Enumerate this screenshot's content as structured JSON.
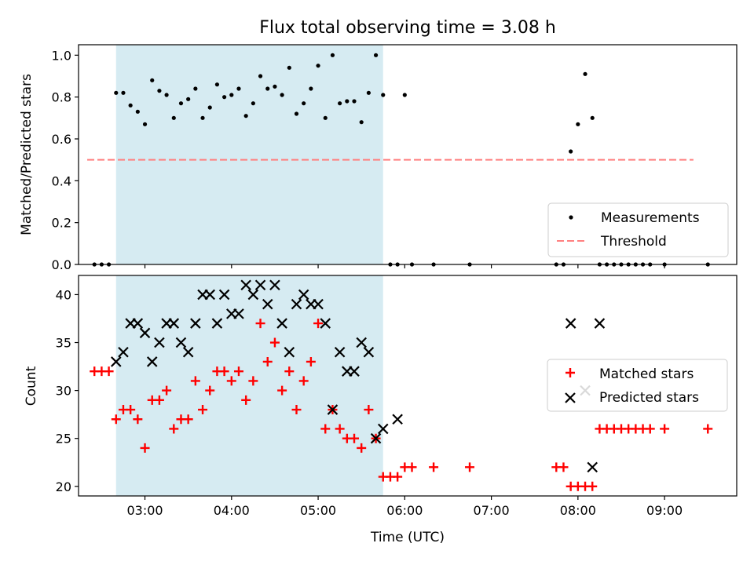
{
  "chart_data": [
    {
      "type": "scatter",
      "title": "Flux total observing time = 3.08 h",
      "ylabel": "Matched/Predicted stars",
      "xlabel": "",
      "ylim": [
        0,
        1.05
      ],
      "yticks": [
        "0.0",
        "0.2",
        "0.4",
        "0.6",
        "0.8",
        "1.0"
      ],
      "ytick_values": [
        0,
        0.2,
        0.4,
        0.6,
        0.8,
        1.0
      ],
      "shaded_span": [
        "02:40",
        "05:45"
      ],
      "legend_position": "lower-right",
      "legend": [
        "Measurements",
        "Threshold"
      ],
      "threshold": {
        "name": "Threshold",
        "y": 0.5,
        "x_start": "02:20",
        "x_end": "09:20",
        "color": "#ff8080"
      },
      "series": [
        {
          "name": "Measurements",
          "color": "#000000",
          "x": [
            "02:25",
            "02:30",
            "02:35",
            "02:40",
            "02:45",
            "02:50",
            "02:55",
            "03:00",
            "03:05",
            "03:10",
            "03:15",
            "03:20",
            "03:25",
            "03:30",
            "03:35",
            "03:40",
            "03:45",
            "03:50",
            "03:55",
            "04:00",
            "04:05",
            "04:10",
            "04:15",
            "04:20",
            "04:25",
            "04:30",
            "04:35",
            "04:40",
            "04:45",
            "04:50",
            "04:55",
            "05:00",
            "05:05",
            "05:10",
            "05:15",
            "05:20",
            "05:25",
            "05:30",
            "05:35",
            "05:40",
            "05:45",
            "05:50",
            "05:55",
            "06:00",
            "06:05",
            "06:20",
            "06:45",
            "07:45",
            "07:50",
            "07:55",
            "08:00",
            "08:05",
            "08:10",
            "08:15",
            "08:20",
            "08:25",
            "08:30",
            "08:35",
            "08:40",
            "08:45",
            "08:50",
            "09:00",
            "09:30"
          ],
          "y": [
            0,
            0,
            0,
            0.82,
            0.82,
            0.76,
            0.73,
            0.67,
            0.88,
            0.83,
            0.81,
            0.7,
            0.77,
            0.79,
            0.84,
            0.7,
            0.75,
            0.86,
            0.8,
            0.81,
            0.84,
            0.71,
            0.77,
            0.9,
            0.84,
            0.85,
            0.81,
            0.94,
            0.72,
            0.77,
            0.84,
            0.95,
            0.7,
            1.0,
            0.77,
            0.78,
            0.78,
            0.68,
            0.82,
            1.0,
            0.81,
            0,
            0,
            0.81,
            0,
            0,
            0,
            0,
            0,
            0.54,
            0.67,
            0.91,
            0.7,
            0,
            0,
            0,
            0,
            0,
            0,
            0,
            0,
            0,
            0
          ]
        }
      ]
    },
    {
      "type": "scatter",
      "title": "",
      "ylabel": "Count",
      "xlabel": "Time (UTC)",
      "ylim": [
        19,
        42
      ],
      "yticks": [
        "20",
        "25",
        "30",
        "35",
        "40"
      ],
      "ytick_values": [
        20,
        25,
        30,
        35,
        40
      ],
      "xticks": [
        "03:00",
        "04:00",
        "05:00",
        "06:00",
        "07:00",
        "08:00",
        "09:00"
      ],
      "shaded_span": [
        "02:40",
        "05:45"
      ],
      "legend_position": "center-right",
      "legend": [
        "Matched stars",
        "Predicted stars"
      ],
      "series": [
        {
          "name": "Matched stars",
          "color": "#ff0000",
          "marker": "plus",
          "x": [
            "02:25",
            "02:30",
            "02:35",
            "02:40",
            "02:45",
            "02:50",
            "02:55",
            "03:00",
            "03:05",
            "03:10",
            "03:15",
            "03:20",
            "03:25",
            "03:30",
            "03:35",
            "03:40",
            "03:45",
            "03:50",
            "03:55",
            "04:00",
            "04:05",
            "04:10",
            "04:15",
            "04:20",
            "04:25",
            "04:30",
            "04:35",
            "04:40",
            "04:45",
            "04:50",
            "04:55",
            "05:00",
            "05:05",
            "05:10",
            "05:15",
            "05:20",
            "05:25",
            "05:30",
            "05:35",
            "05:40",
            "05:45",
            "05:50",
            "05:55",
            "06:00",
            "06:05",
            "06:20",
            "06:45",
            "07:45",
            "07:50",
            "07:55",
            "08:00",
            "08:05",
            "08:10",
            "08:15",
            "08:20",
            "08:25",
            "08:30",
            "08:35",
            "08:40",
            "08:45",
            "08:50",
            "09:00",
            "09:30"
          ],
          "y": [
            32,
            32,
            32,
            27,
            28,
            28,
            27,
            24,
            29,
            29,
            30,
            26,
            27,
            27,
            31,
            28,
            30,
            32,
            32,
            31,
            32,
            29,
            31,
            37,
            33,
            35,
            30,
            32,
            28,
            31,
            33,
            37,
            26,
            28,
            26,
            25,
            25,
            24,
            28,
            25,
            21,
            21,
            21,
            22,
            22,
            22,
            22,
            22,
            22,
            20,
            20,
            20,
            20,
            26,
            26,
            26,
            26,
            26,
            26,
            26,
            26,
            26,
            26
          ]
        },
        {
          "name": "Predicted stars",
          "color": "#000000",
          "marker": "x",
          "x": [
            "02:40",
            "02:45",
            "02:50",
            "02:55",
            "03:00",
            "03:05",
            "03:10",
            "03:15",
            "03:20",
            "03:25",
            "03:30",
            "03:35",
            "03:40",
            "03:45",
            "03:50",
            "03:55",
            "04:00",
            "04:05",
            "04:10",
            "04:15",
            "04:20",
            "04:25",
            "04:30",
            "04:35",
            "04:40",
            "04:45",
            "04:50",
            "04:55",
            "05:00",
            "05:05",
            "05:10",
            "05:15",
            "05:20",
            "05:25",
            "05:30",
            "05:35",
            "05:40",
            "05:45",
            "05:55",
            "07:55",
            "08:05",
            "08:10",
            "08:15"
          ],
          "y": [
            33,
            34,
            37,
            37,
            36,
            33,
            35,
            37,
            37,
            35,
            34,
            37,
            40,
            40,
            37,
            40,
            38,
            38,
            41,
            40,
            41,
            39,
            41,
            37,
            34,
            39,
            40,
            39,
            39,
            37,
            28,
            34,
            32,
            32,
            35,
            34,
            25,
            26,
            27,
            37,
            30,
            22,
            37
          ]
        }
      ]
    }
  ]
}
